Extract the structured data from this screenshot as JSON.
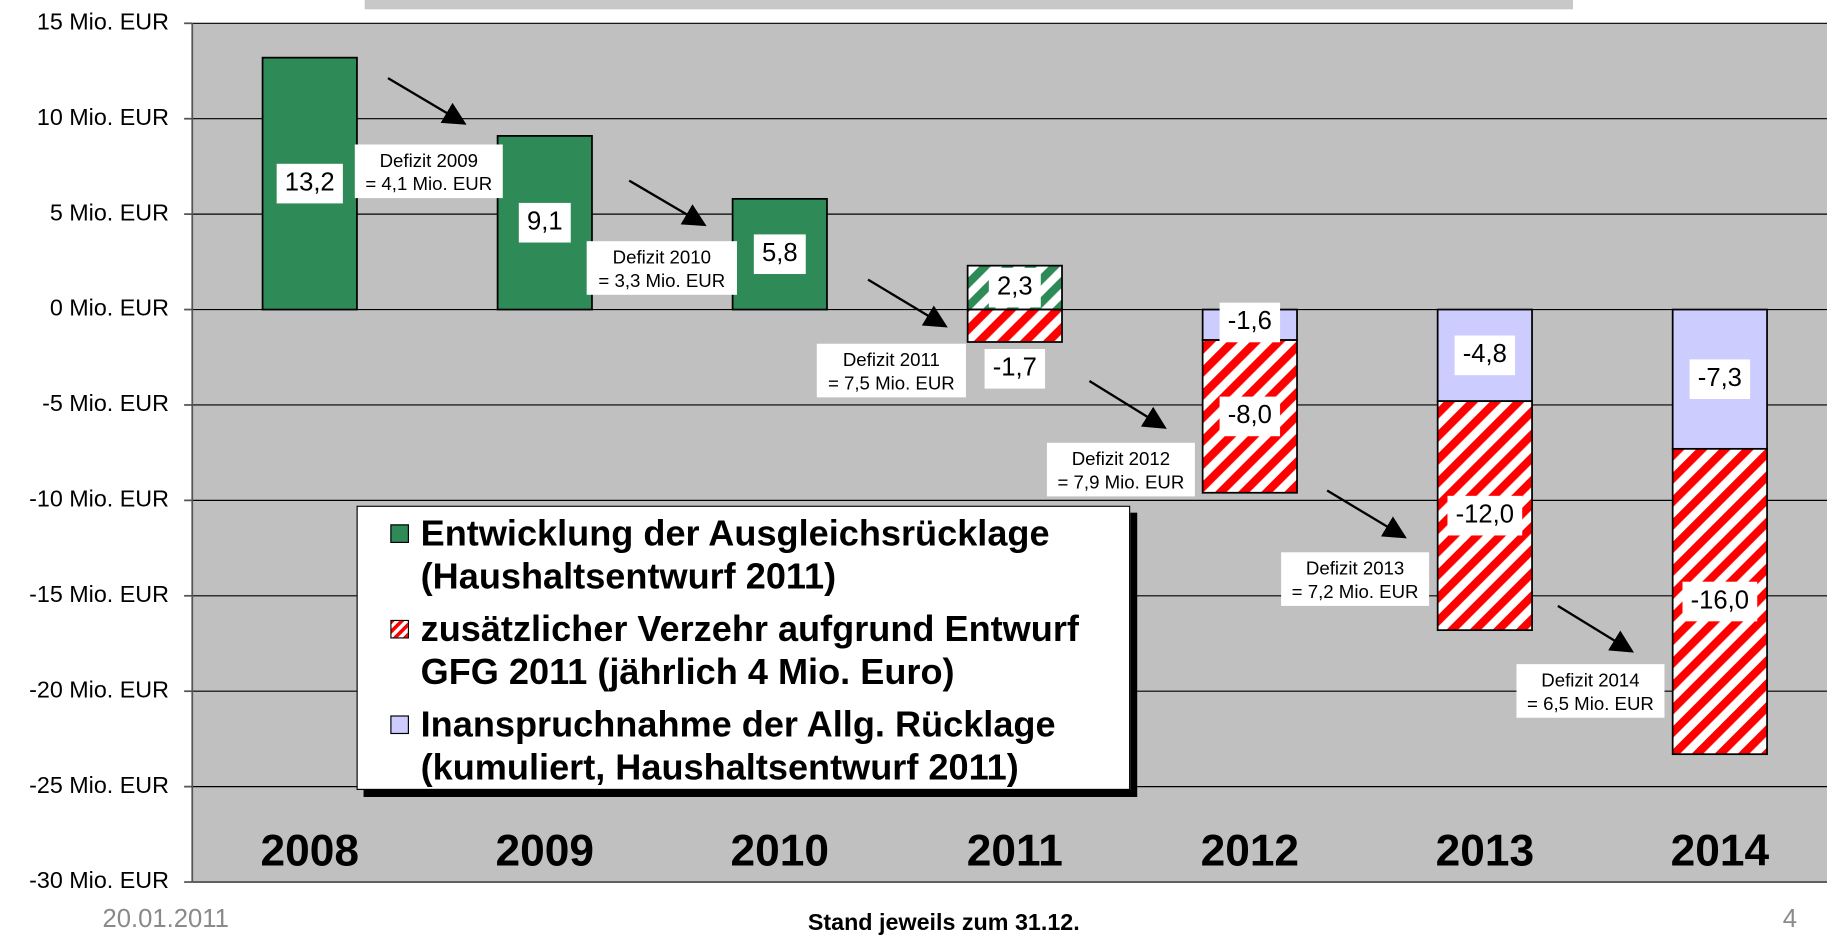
{
  "chart_data": {
    "type": "stacked_bar",
    "categories": [
      "2008",
      "2009",
      "2010",
      "2011",
      "2012",
      "2013",
      "2014"
    ],
    "series": [
      {
        "name": "Entwicklung der Ausgleichsrücklage (Haushaltsentwurf 2011)",
        "color": "#2e8b57",
        "pattern": [
          "solid",
          "solid",
          "solid",
          "hatch",
          null,
          null,
          null
        ],
        "values": [
          13.2,
          9.1,
          5.8,
          2.3,
          null,
          null,
          null
        ],
        "value_labels": [
          "13,2",
          "9,1",
          "5,8",
          "2,3",
          null,
          null,
          null
        ]
      },
      {
        "name": "Inanspruchnahme der Allg. Rücklage (kumuliert, Haushaltsentwurf 2011)",
        "color": "#ccccff",
        "pattern": "solid",
        "values": [
          null,
          null,
          null,
          null,
          -1.6,
          -4.8,
          -7.3
        ],
        "value_labels": [
          null,
          null,
          null,
          null,
          "-1,6",
          "-4,8",
          "-7,3"
        ]
      },
      {
        "name": "zusätzlicher Verzehr aufgrund Entwurf GFG 2011 (jährlich 4 Mio. Euro)",
        "color": "#ff0000",
        "pattern": "hatch",
        "values": [
          null,
          null,
          null,
          -1.7,
          -8.0,
          -12.0,
          -16.0
        ],
        "value_labels": [
          null,
          null,
          null,
          "-1,7",
          "-8,0",
          "-12,0",
          "-16,0"
        ]
      }
    ],
    "legend_order": [
      0,
      2,
      1
    ],
    "ylim": [
      -30,
      15
    ],
    "yticks": [
      {
        "value": 15,
        "label": "15 Mio. EUR"
      },
      {
        "value": 10,
        "label": "10 Mio. EUR"
      },
      {
        "value": 5,
        "label": "5 Mio. EUR"
      },
      {
        "value": 0,
        "label": "0 Mio. EUR"
      },
      {
        "value": -5,
        "label": "-5 Mio. EUR"
      },
      {
        "value": -10,
        "label": "-10 Mio. EUR"
      },
      {
        "value": -15,
        "label": "-15 Mio. EUR"
      },
      {
        "value": -20,
        "label": "-20 Mio. EUR"
      },
      {
        "value": -25,
        "label": "-25 Mio. EUR"
      },
      {
        "value": -30,
        "label": "-30 Mio. EUR"
      }
    ],
    "grid": true,
    "annotations": [
      [
        "Defizit 2009",
        "= 4,1 Mio. EUR"
      ],
      [
        "Defizit 2010",
        "= 3,3 Mio. EUR"
      ],
      [
        "Defizit 2011",
        "= 7,5 Mio. EUR"
      ],
      [
        "Defizit 2012",
        "= 7,9 Mio. EUR"
      ],
      [
        "Defizit 2013",
        "= 7,2 Mio. EUR"
      ],
      [
        "Defizit 2014",
        "= 6,5 Mio. EUR"
      ]
    ]
  },
  "footer": {
    "date": "20.01.2011",
    "note": "Stand jeweils zum 31.12.",
    "page": "4"
  }
}
